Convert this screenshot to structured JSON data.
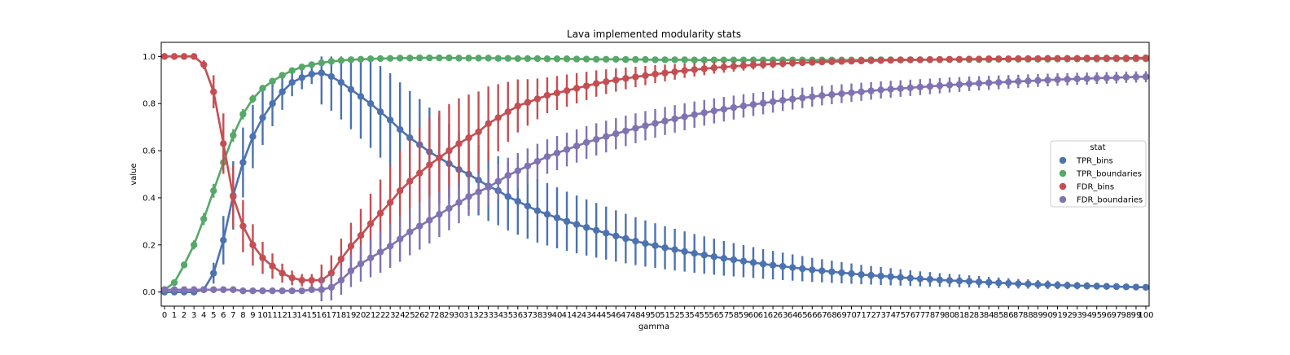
{
  "chart_data": {
    "type": "line",
    "title": "Lava implemented modularity stats",
    "xlabel": "gamma",
    "ylabel": "value",
    "x": [
      0,
      1,
      2,
      3,
      4,
      5,
      6,
      7,
      8,
      9,
      10,
      11,
      12,
      13,
      14,
      15,
      16,
      17,
      18,
      19,
      20,
      21,
      22,
      23,
      24,
      25,
      26,
      27,
      28,
      29,
      30,
      31,
      32,
      33,
      34,
      35,
      36,
      37,
      38,
      39,
      40,
      41,
      42,
      43,
      44,
      45,
      46,
      47,
      48,
      49,
      50,
      51,
      52,
      53,
      54,
      55,
      56,
      57,
      58,
      59,
      60,
      61,
      62,
      63,
      64,
      65,
      66,
      67,
      68,
      69,
      70,
      71,
      72,
      73,
      74,
      75,
      76,
      77,
      78,
      79,
      80,
      81,
      82,
      83,
      84,
      85,
      86,
      87,
      88,
      89,
      90,
      91,
      92,
      93,
      94,
      95,
      96,
      97,
      98,
      99,
      100
    ],
    "ylim": [
      -0.06,
      1.06
    ],
    "yticks": [
      "0.0",
      "0.2",
      "0.4",
      "0.6",
      "0.8",
      "1.0"
    ],
    "grid": false,
    "legend": {
      "title": "stat",
      "placement": "center-right"
    },
    "series": [
      {
        "name": "TPR_bins",
        "color": "#4c72b0",
        "values": [
          0,
          0,
          0,
          0,
          0.01,
          0.08,
          0.22,
          0.41,
          0.55,
          0.66,
          0.74,
          0.8,
          0.85,
          0.89,
          0.91,
          0.925,
          0.93,
          0.915,
          0.89,
          0.86,
          0.83,
          0.8,
          0.765,
          0.73,
          0.69,
          0.655,
          0.625,
          0.595,
          0.57,
          0.545,
          0.52,
          0.5,
          0.475,
          0.45,
          0.43,
          0.405,
          0.385,
          0.365,
          0.345,
          0.33,
          0.315,
          0.3,
          0.287,
          0.274,
          0.262,
          0.25,
          0.238,
          0.227,
          0.216,
          0.206,
          0.197,
          0.188,
          0.18,
          0.172,
          0.164,
          0.157,
          0.15,
          0.143,
          0.137,
          0.131,
          0.125,
          0.119,
          0.114,
          0.109,
          0.104,
          0.099,
          0.094,
          0.09,
          0.086,
          0.082,
          0.078,
          0.074,
          0.071,
          0.068,
          0.065,
          0.062,
          0.059,
          0.056,
          0.054,
          0.051,
          0.049,
          0.047,
          0.045,
          0.043,
          0.041,
          0.039,
          0.037,
          0.035,
          0.034,
          0.032,
          0.031,
          0.029,
          0.028,
          0.027,
          0.026,
          0.025,
          0.024,
          0.023,
          0.022,
          0.021,
          0.02
        ]
      },
      {
        "name": "TPR_boundaries",
        "color": "#55a868",
        "values": [
          0.01,
          0.04,
          0.115,
          0.2,
          0.31,
          0.43,
          0.55,
          0.665,
          0.755,
          0.82,
          0.865,
          0.895,
          0.92,
          0.94,
          0.955,
          0.965,
          0.973,
          0.979,
          0.983,
          0.986,
          0.988,
          0.99,
          0.991,
          0.992,
          0.993,
          0.993,
          0.994,
          0.994,
          0.994,
          0.994,
          0.993,
          0.993,
          0.993,
          0.993,
          0.992,
          0.992,
          0.991,
          0.991,
          0.991,
          0.99,
          0.99,
          0.99,
          0.989,
          0.989,
          0.988,
          0.988,
          0.988,
          0.987,
          0.987,
          0.987,
          0.986,
          0.986,
          0.986,
          0.986,
          0.985,
          0.985,
          0.985,
          0.985,
          0.985,
          0.985,
          0.985,
          0.985,
          0.985,
          0.985,
          0.985,
          0.985,
          0.985,
          0.985,
          0.985,
          0.985,
          0.985,
          0.985,
          0.986,
          0.986,
          0.986,
          0.986,
          0.986,
          0.986,
          0.986,
          0.987,
          0.987,
          0.987,
          0.987,
          0.987,
          0.987,
          0.988,
          0.988,
          0.988,
          0.988,
          0.988,
          0.988,
          0.989,
          0.989,
          0.989,
          0.989,
          0.989,
          0.99,
          0.99,
          0.99,
          0.99,
          0.99
        ]
      },
      {
        "name": "FDR_bins",
        "color": "#c44e52",
        "values": [
          1,
          1,
          1,
          1,
          0.965,
          0.85,
          0.63,
          0.405,
          0.28,
          0.2,
          0.145,
          0.11,
          0.08,
          0.06,
          0.05,
          0.05,
          0.05,
          0.08,
          0.14,
          0.195,
          0.24,
          0.29,
          0.335,
          0.38,
          0.43,
          0.47,
          0.505,
          0.54,
          0.57,
          0.6,
          0.63,
          0.655,
          0.68,
          0.715,
          0.74,
          0.765,
          0.79,
          0.805,
          0.82,
          0.835,
          0.845,
          0.855,
          0.865,
          0.875,
          0.885,
          0.893,
          0.9,
          0.907,
          0.913,
          0.919,
          0.925,
          0.93,
          0.935,
          0.94,
          0.944,
          0.948,
          0.952,
          0.955,
          0.958,
          0.961,
          0.964,
          0.966,
          0.968,
          0.97,
          0.972,
          0.974,
          0.975,
          0.977,
          0.978,
          0.979,
          0.98,
          0.981,
          0.982,
          0.983,
          0.984,
          0.985,
          0.986,
          0.986,
          0.987,
          0.987,
          0.988,
          0.988,
          0.989,
          0.989,
          0.99,
          0.99,
          0.99,
          0.991,
          0.991,
          0.991,
          0.992,
          0.992,
          0.992,
          0.992,
          0.993,
          0.993,
          0.993,
          0.993,
          0.993,
          0.994,
          0.994
        ]
      },
      {
        "name": "FDR_boundaries",
        "color": "#8172b2",
        "values": [
          0.01,
          0.01,
          0.01,
          0.01,
          0.01,
          0.01,
          0.01,
          0.01,
          0.005,
          0.005,
          0.005,
          0.005,
          0.005,
          0.005,
          0.005,
          0.01,
          0.01,
          0.02,
          0.05,
          0.09,
          0.12,
          0.145,
          0.17,
          0.195,
          0.225,
          0.255,
          0.28,
          0.305,
          0.33,
          0.355,
          0.38,
          0.405,
          0.425,
          0.445,
          0.47,
          0.495,
          0.515,
          0.535,
          0.555,
          0.575,
          0.59,
          0.605,
          0.62,
          0.635,
          0.648,
          0.66,
          0.672,
          0.684,
          0.695,
          0.706,
          0.716,
          0.726,
          0.735,
          0.744,
          0.753,
          0.761,
          0.769,
          0.776,
          0.783,
          0.79,
          0.796,
          0.802,
          0.808,
          0.814,
          0.819,
          0.824,
          0.829,
          0.834,
          0.838,
          0.842,
          0.846,
          0.85,
          0.854,
          0.858,
          0.861,
          0.864,
          0.867,
          0.87,
          0.873,
          0.876,
          0.879,
          0.881,
          0.884,
          0.886,
          0.888,
          0.89,
          0.892,
          0.894,
          0.896,
          0.898,
          0.9,
          0.902,
          0.903,
          0.905,
          0.906,
          0.908,
          0.909,
          0.91,
          0.912,
          0.913,
          0.914
        ]
      }
    ]
  }
}
